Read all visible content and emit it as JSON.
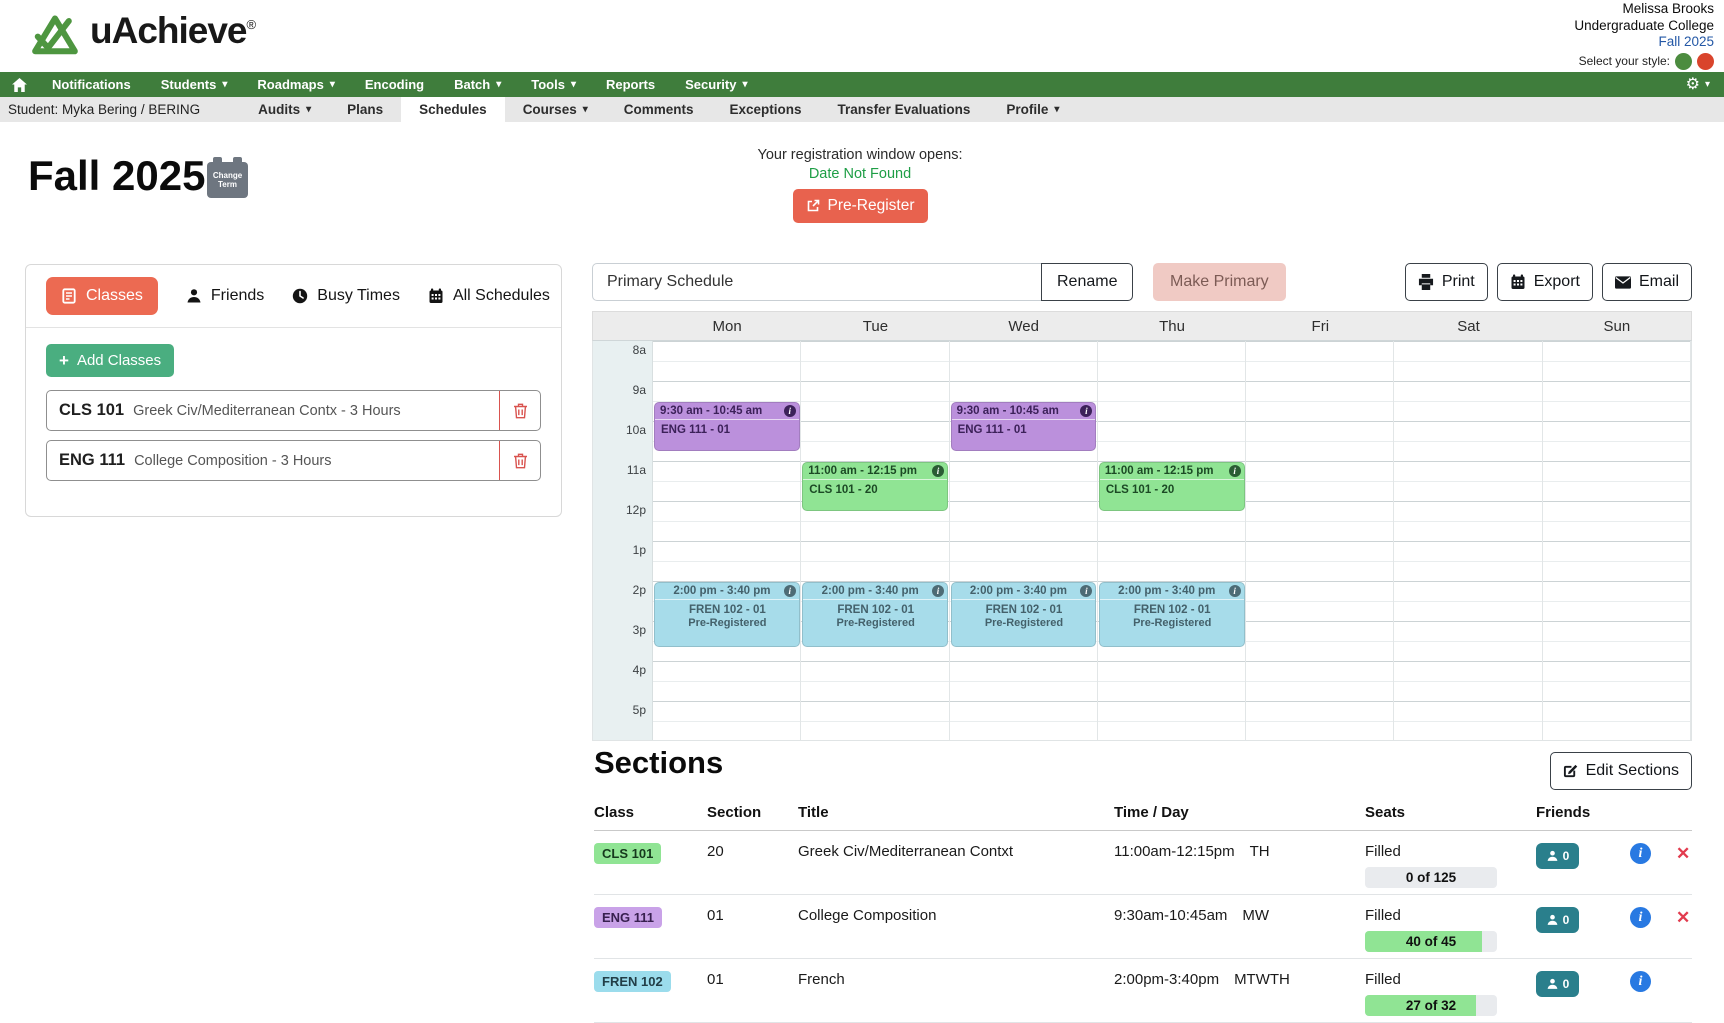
{
  "brand": {
    "name": "uAchieve",
    "registered": "®"
  },
  "user": {
    "name": "Melissa Brooks",
    "college": "Undergraduate College",
    "term": "Fall 2025",
    "style_label": "Select your style:"
  },
  "nav": {
    "items": [
      {
        "label": "Notifications",
        "caret": false
      },
      {
        "label": "Students",
        "caret": true
      },
      {
        "label": "Roadmaps",
        "caret": true
      },
      {
        "label": "Encoding",
        "caret": false
      },
      {
        "label": "Batch",
        "caret": true
      },
      {
        "label": "Tools",
        "caret": true
      },
      {
        "label": "Reports",
        "caret": false
      },
      {
        "label": "Security",
        "caret": true
      }
    ]
  },
  "subnav": {
    "student": "Student: Myka Bering / BERING",
    "items": [
      {
        "label": "Audits",
        "caret": true,
        "active": false
      },
      {
        "label": "Plans",
        "caret": false,
        "active": false
      },
      {
        "label": "Schedules",
        "caret": false,
        "active": true
      },
      {
        "label": "Courses",
        "caret": true,
        "active": false
      },
      {
        "label": "Comments",
        "caret": false,
        "active": false
      },
      {
        "label": "Exceptions",
        "caret": false,
        "active": false
      },
      {
        "label": "Transfer Evaluations",
        "caret": false,
        "active": false
      },
      {
        "label": "Profile",
        "caret": true,
        "active": false
      }
    ]
  },
  "page": {
    "term_title": "Fall 2025",
    "change_term": "Change Term",
    "registration_label": "Your registration window opens:",
    "registration_value": "Date Not Found",
    "pre_register_label": "Pre-Register"
  },
  "left_panel": {
    "tabs": [
      {
        "label": "Classes",
        "icon": "book",
        "active": true
      },
      {
        "label": "Friends",
        "icon": "person",
        "active": false
      },
      {
        "label": "Busy Times",
        "icon": "clock",
        "active": false
      },
      {
        "label": "All Schedules",
        "icon": "calendar",
        "active": false
      }
    ],
    "add_classes_label": "Add Classes",
    "classes": [
      {
        "code": "CLS 101",
        "desc": "Greek Civ/Mediterranean Contx - 3 Hours"
      },
      {
        "code": "ENG 111",
        "desc": "College Composition - 3 Hours"
      }
    ]
  },
  "schedule": {
    "name_value": "Primary Schedule",
    "rename_label": "Rename",
    "make_primary_label": "Make Primary",
    "print_label": "Print",
    "export_label": "Export",
    "email_label": "Email",
    "days": [
      "Mon",
      "Tue",
      "Wed",
      "Thu",
      "Fri",
      "Sat",
      "Sun"
    ],
    "times": [
      "8a",
      "9a",
      "10a",
      "11a",
      "12p",
      "1p",
      "2p",
      "3p",
      "4p",
      "5p"
    ],
    "events": [
      {
        "day": "Mon",
        "time": "9:30 am - 10:45 am",
        "label": "ENG 111 - 01",
        "status": "",
        "color": "purple",
        "start": 9.5,
        "end": 10.75
      },
      {
        "day": "Wed",
        "time": "9:30 am - 10:45 am",
        "label": "ENG 111 - 01",
        "status": "",
        "color": "purple",
        "start": 9.5,
        "end": 10.75
      },
      {
        "day": "Tue",
        "time": "11:00 am - 12:15 pm",
        "label": "CLS 101 - 20",
        "status": "",
        "color": "green",
        "start": 11,
        "end": 12.25
      },
      {
        "day": "Thu",
        "time": "11:00 am - 12:15 pm",
        "label": "CLS 101 - 20",
        "status": "",
        "color": "green",
        "start": 11,
        "end": 12.25
      },
      {
        "day": "Mon",
        "time": "2:00 pm - 3:40 pm",
        "label": "FREN 102 - 01",
        "status": "Pre-Registered",
        "color": "blue",
        "start": 14,
        "end": 15.67
      },
      {
        "day": "Tue",
        "time": "2:00 pm - 3:40 pm",
        "label": "FREN 102 - 01",
        "status": "Pre-Registered",
        "color": "blue",
        "start": 14,
        "end": 15.67
      },
      {
        "day": "Wed",
        "time": "2:00 pm - 3:40 pm",
        "label": "FREN 102 - 01",
        "status": "Pre-Registered",
        "color": "blue",
        "start": 14,
        "end": 15.67
      },
      {
        "day": "Thu",
        "time": "2:00 pm - 3:40 pm",
        "label": "FREN 102 - 01",
        "status": "Pre-Registered",
        "color": "blue",
        "start": 14,
        "end": 15.67
      }
    ]
  },
  "sections": {
    "title": "Sections",
    "edit_label": "Edit Sections",
    "columns": [
      "Class",
      "Section",
      "Title",
      "Time / Day",
      "Seats",
      "Friends"
    ],
    "rows": [
      {
        "class_code": "CLS 101",
        "badge": "green",
        "section": "20",
        "title": "Greek Civ/Mediterranean Contxt",
        "time": "11:00am-12:15pm",
        "days": "TH",
        "seats_status": "Filled",
        "seats_text": "0 of 125",
        "seats_pct": 0,
        "friends_count": "0",
        "removable": true
      },
      {
        "class_code": "ENG 111",
        "badge": "purple",
        "section": "01",
        "title": "College Composition",
        "time": "9:30am-10:45am",
        "days": "MW",
        "seats_status": "Filled",
        "seats_text": "40 of 45",
        "seats_pct": 89,
        "friends_count": "0",
        "removable": true
      },
      {
        "class_code": "FREN 102",
        "badge": "cyan",
        "section": "01",
        "title": "French",
        "time": "2:00pm-3:40pm",
        "days": "MTWTH",
        "seats_status": "Filled",
        "seats_text": "27 of 32",
        "seats_pct": 84,
        "friends_count": "0",
        "removable": false
      }
    ]
  },
  "colors": {
    "brand_green": "#3f7d3c",
    "accent_red": "#ec6a52",
    "add_green": "#4aae80",
    "success_green": "#1e9e46",
    "event_purple": "#bb90dc",
    "event_green": "#90e494",
    "event_blue": "#a7dcea",
    "friends_teal": "#2a7f8c",
    "info_blue": "#2879e2",
    "style_dot_green": "#4c8c3f",
    "style_dot_red": "#d9442c"
  }
}
